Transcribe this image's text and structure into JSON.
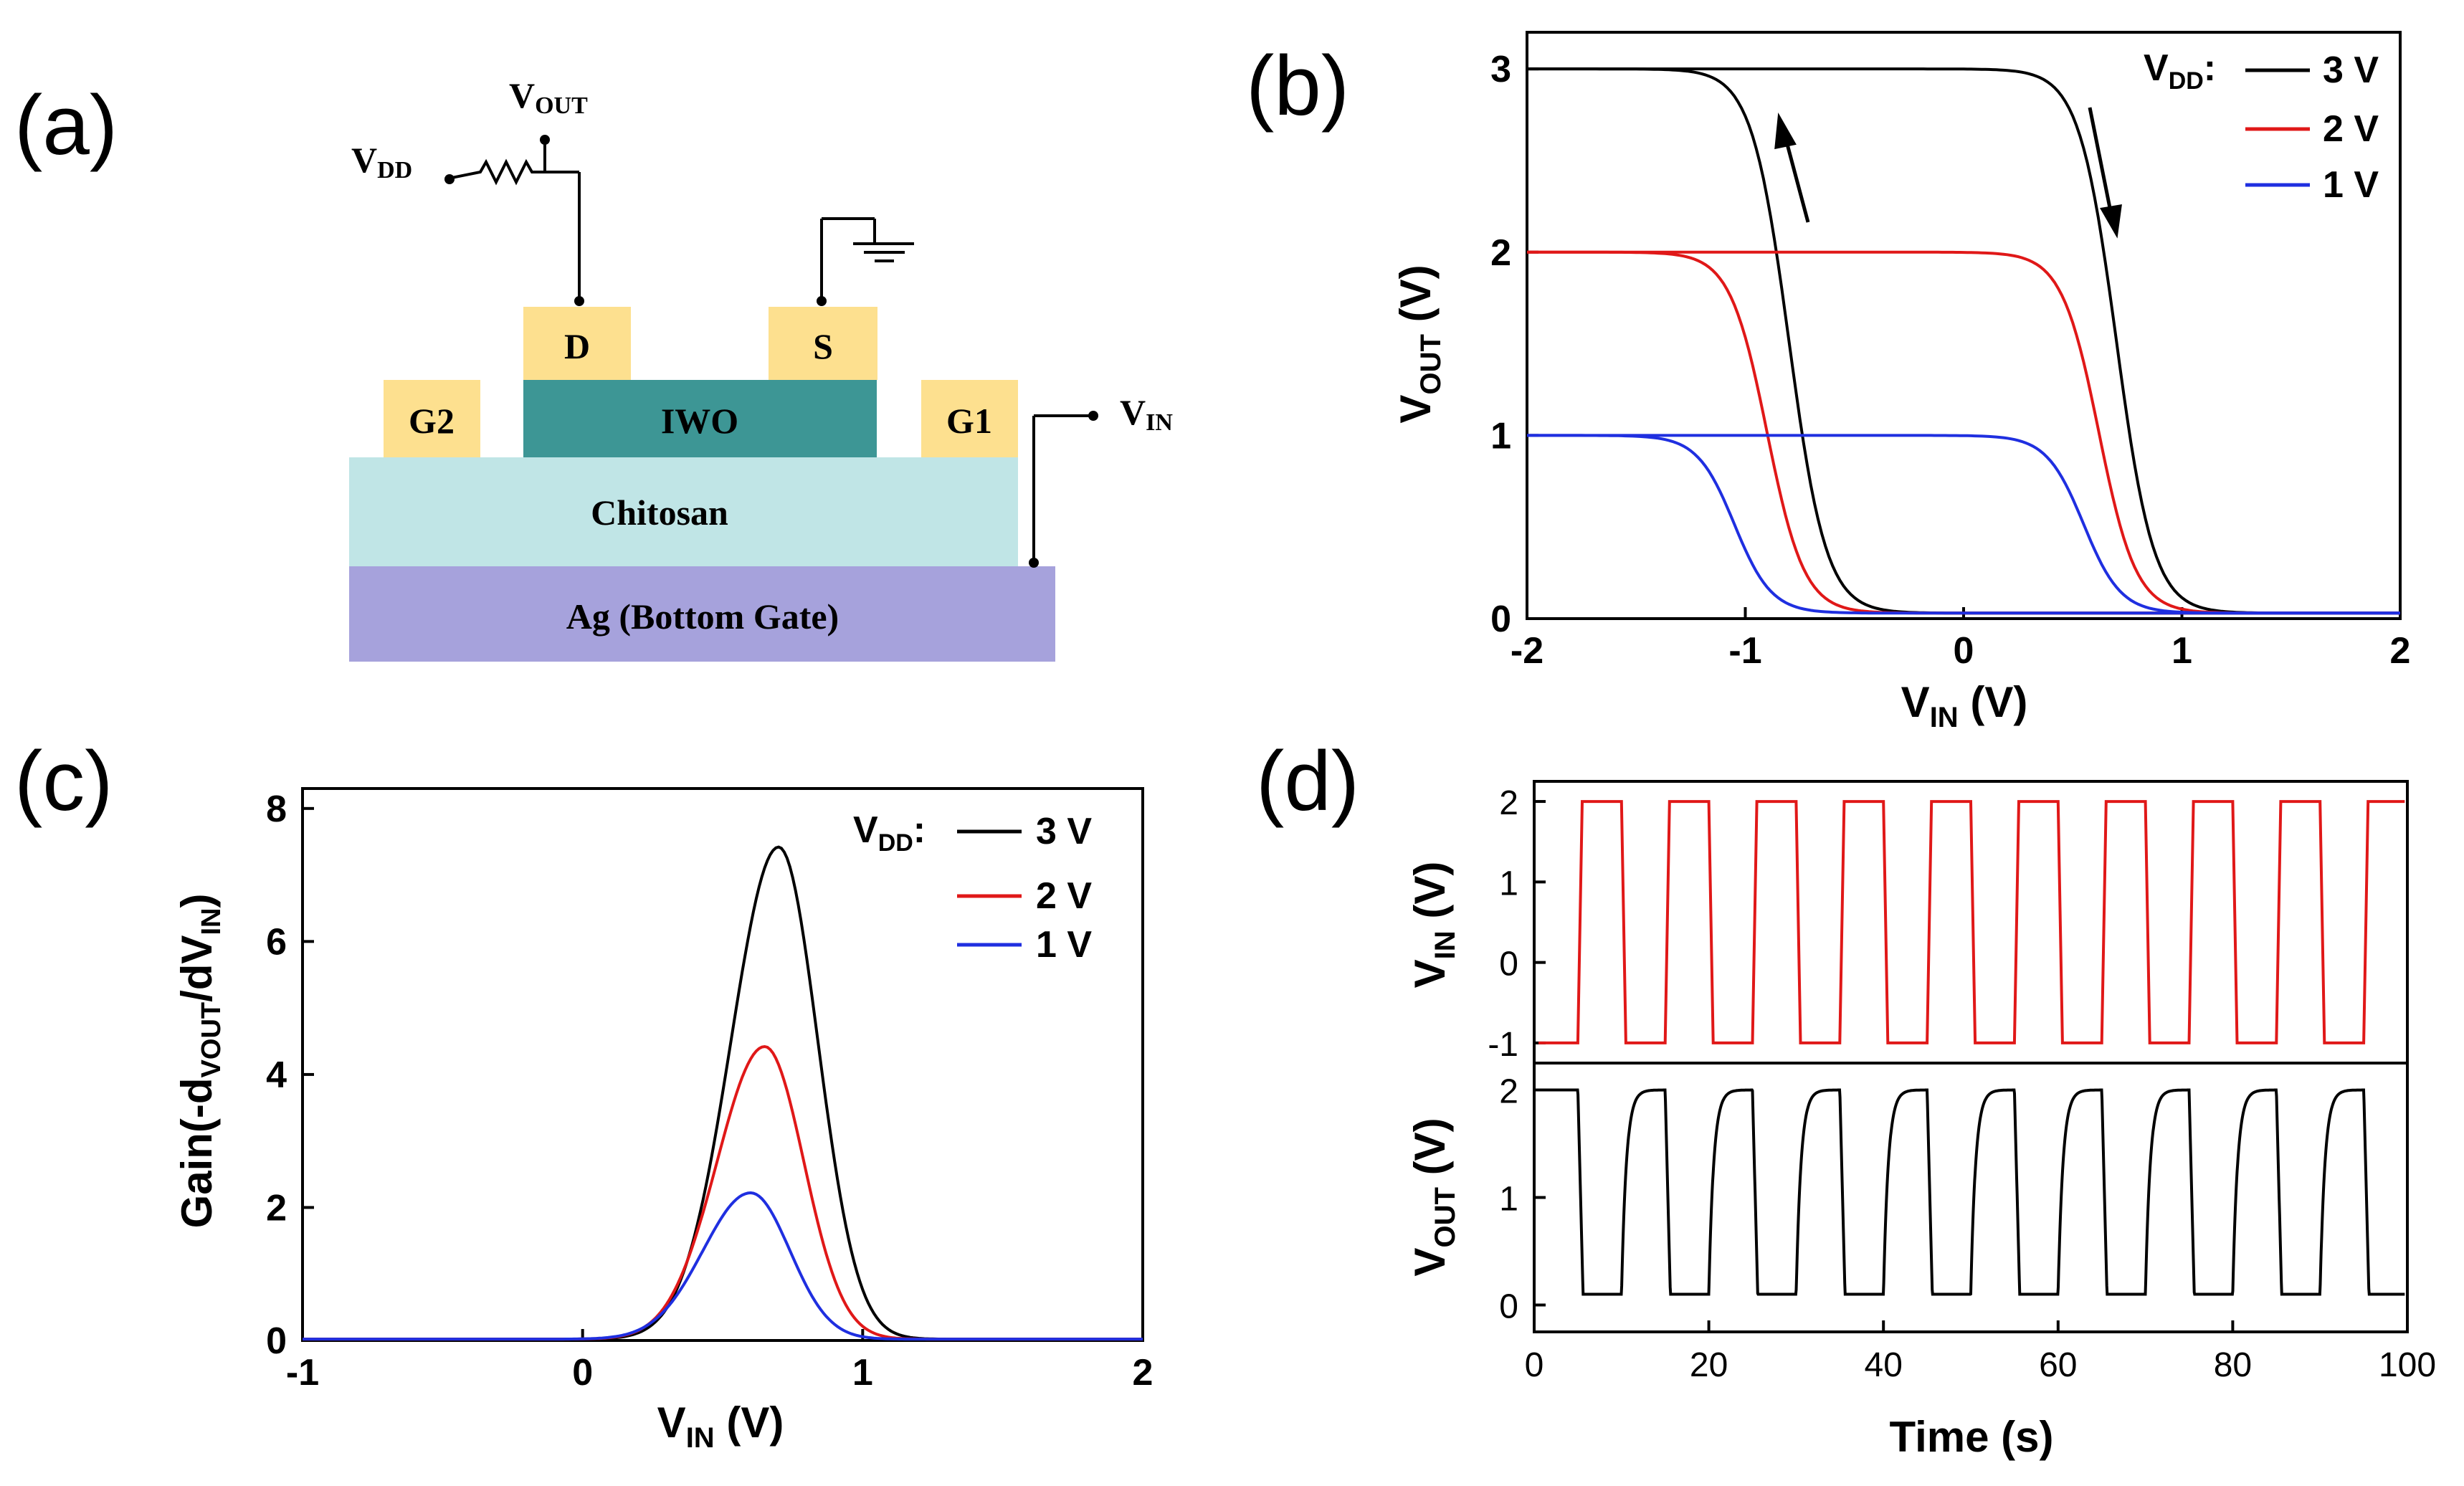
{
  "panel_labels": {
    "a": "(a)",
    "b": "(b)",
    "c": "(c)",
    "d": "(d)"
  },
  "colors": {
    "vdd3": "#000000",
    "vdd2": "#e01818",
    "vdd1": "#1f2fe0",
    "pad": "#fde08f",
    "iwo": "#3d9695",
    "chitosan": "#c0e5e6",
    "ag": "#a6a2dc"
  },
  "device": {
    "vout": {
      "main": "V",
      "sub": "OUT"
    },
    "vdd": {
      "main": "V",
      "sub": "DD"
    },
    "vin": {
      "main": "V",
      "sub": "IN"
    },
    "drain": "D",
    "source": "S",
    "gate2": "G2",
    "gate1": "G1",
    "channel": "IWO",
    "dielectric": "Chitosan",
    "bottom_gate": "Ag (Bottom Gate)"
  },
  "legend": {
    "title_main": "V",
    "title_sub": "DD",
    "title_colon": ":",
    "entries": [
      "3 V",
      "2 V",
      "1 V"
    ]
  },
  "chart_data": [
    {
      "id": "b",
      "type": "line",
      "title": "",
      "xlabel": {
        "main": "V",
        "sub": "IN",
        "unit": " (V)"
      },
      "ylabel": {
        "main": "V",
        "sub": "OUT",
        "unit": " (V)"
      },
      "xlim": [
        -2,
        2
      ],
      "ylim": [
        0,
        3.2
      ],
      "xticks": [
        -2,
        -1,
        0,
        1,
        2
      ],
      "xtick_labels": [
        "-2",
        "-1",
        "0",
        "1",
        "2"
      ],
      "yticks": [
        0,
        1,
        2,
        3
      ],
      "ytick_labels": [
        "0",
        "1",
        "2",
        "3"
      ],
      "series": [
        {
          "name": "3 V",
          "forward_switch": 0.7,
          "reverse_switch": -0.8,
          "vmax": 3
        },
        {
          "name": "2 V",
          "forward_switch": 0.62,
          "reverse_switch": -0.9,
          "vmax": 2
        },
        {
          "name": "1 V",
          "forward_switch": 0.55,
          "reverse_switch": -1.05,
          "vmax": 1
        }
      ],
      "annotations": [
        "up arrow on reverse sweep",
        "down arrow on forward sweep"
      ]
    },
    {
      "id": "c",
      "type": "line",
      "title": "",
      "xlabel": {
        "main": "V",
        "sub": "IN",
        "unit": " (V)"
      },
      "ylabel": {
        "text": "Gain",
        "pre": "(-d",
        "sub1": "VOUT",
        "mid": "/dV",
        "sub2": "IN",
        "post": ")"
      },
      "xlim": [
        -1,
        2
      ],
      "ylim": [
        0,
        8.3
      ],
      "xticks": [
        -1,
        0,
        1,
        2
      ],
      "xtick_labels": [
        "-1",
        "0",
        "1",
        "2"
      ],
      "yticks": [
        0,
        2,
        4,
        6,
        8
      ],
      "ytick_labels": [
        "0",
        "2",
        "4",
        "6",
        "8"
      ],
      "series": [
        {
          "name": "3 V",
          "peak_x": 0.7,
          "peak_gain": 7.4
        },
        {
          "name": "2 V",
          "peak_x": 0.65,
          "peak_gain": 4.4
        },
        {
          "name": "1 V",
          "peak_x": 0.6,
          "peak_gain": 2.2
        }
      ]
    },
    {
      "id": "d",
      "type": "line",
      "xlabel": "Time (s)",
      "xlim": [
        0,
        100
      ],
      "xticks": [
        0,
        20,
        40,
        60,
        80,
        100
      ],
      "xtick_labels": [
        "0",
        "20",
        "40",
        "60",
        "80",
        "100"
      ],
      "subplots": [
        {
          "ylabel": {
            "main": "V",
            "sub": "IN",
            "unit": " (V)"
          },
          "ylim": [
            -1.25,
            2.25
          ],
          "yticks": [
            -1,
            0,
            1,
            2
          ],
          "ytick_labels": [
            "-1",
            "0",
            "1",
            "2"
          ],
          "low": -1,
          "high": 2,
          "period": 10,
          "first_rise": 5
        },
        {
          "ylabel": {
            "main": "V",
            "sub": "OUT",
            "unit": " (V)"
          },
          "ylim": [
            -0.25,
            2.25
          ],
          "yticks": [
            0,
            1,
            2
          ],
          "ytick_labels": [
            "0",
            "1",
            "2"
          ],
          "low": 0.1,
          "high": 2,
          "period": 10,
          "first_fall": 5
        }
      ]
    }
  ]
}
